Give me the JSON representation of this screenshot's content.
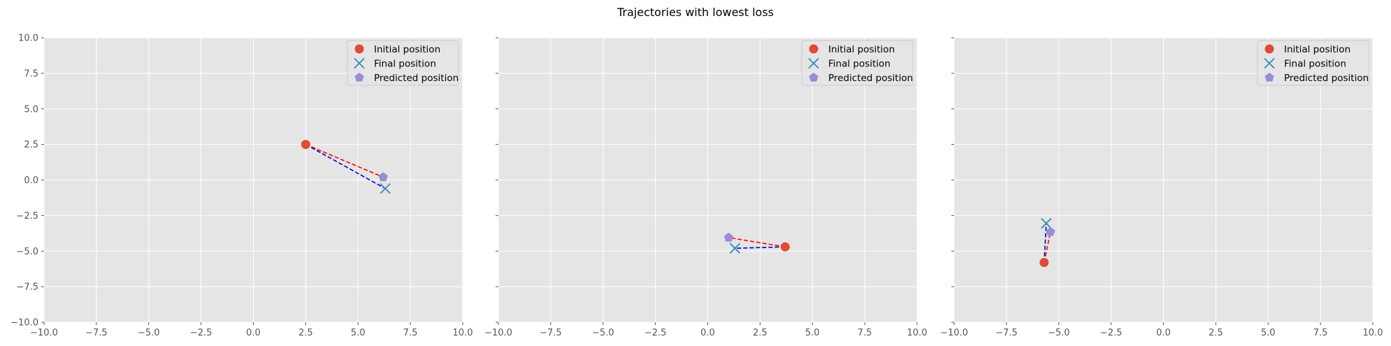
{
  "chart_data": {
    "type": "scatter",
    "title": "Trajectories with lowest loss",
    "xlim": [
      -10,
      10
    ],
    "ylim": [
      -10,
      10
    ],
    "xticks": [
      -10,
      -7.5,
      -5,
      -2.5,
      0,
      2.5,
      5,
      7.5,
      10
    ],
    "yticks": [
      -10,
      -7.5,
      -5,
      -2.5,
      0,
      2.5,
      5,
      7.5,
      10
    ],
    "xtick_labels": [
      "−10.0",
      "−7.5",
      "−5.0",
      "−2.5",
      "0.0",
      "2.5",
      "5.0",
      "7.5",
      "10.0"
    ],
    "ytick_labels": [
      "−10.0",
      "−7.5",
      "−5.0",
      "−2.5",
      "0.0",
      "2.5",
      "5.0",
      "7.5",
      "10.0"
    ],
    "grid": true,
    "sharey": true,
    "legend_position": "upper-right",
    "legend": [
      {
        "label": "Initial position",
        "marker": "circle",
        "color": "#E24A33"
      },
      {
        "label": "Final position",
        "marker": "x",
        "color": "#348ABD"
      },
      {
        "label": "Predicted position",
        "marker": "pentagon",
        "color": "#988ED5"
      }
    ],
    "line_colors": {
      "to_predicted": "#FF0000",
      "to_final": "#0000CC"
    },
    "panels": [
      {
        "initial": [
          2.5,
          2.5
        ],
        "final": [
          6.3,
          -0.6
        ],
        "predicted": [
          6.2,
          0.2
        ]
      },
      {
        "initial": [
          3.7,
          -4.7
        ],
        "final": [
          1.3,
          -4.8
        ],
        "predicted": [
          1.0,
          -4.05
        ]
      },
      {
        "initial": [
          -5.7,
          -5.8
        ],
        "final": [
          -5.6,
          -3.05
        ],
        "predicted": [
          -5.4,
          -3.65
        ]
      }
    ]
  }
}
